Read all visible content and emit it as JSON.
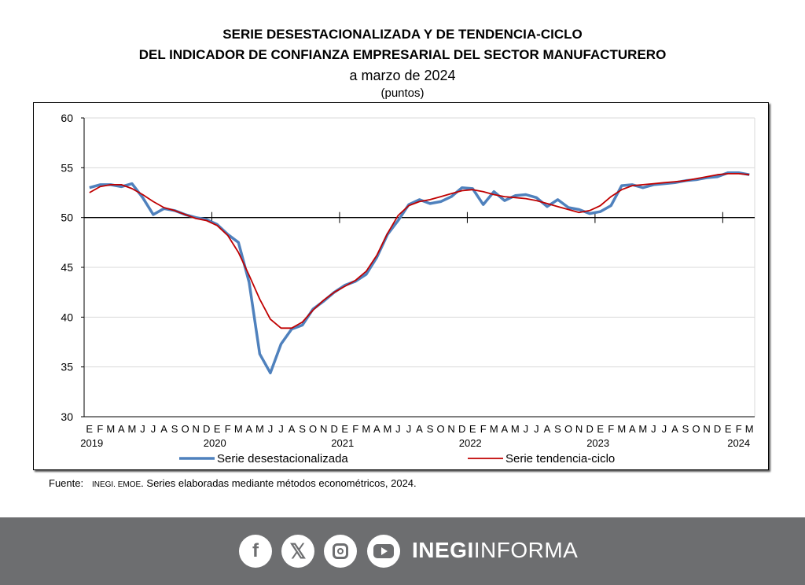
{
  "title_line1": "SERIE DESESTACIONALIZADA Y DE TENDENCIA-CICLO",
  "title_line2": "DEL INDICADOR DE CONFIANZA EMPRESARIAL DEL SECTOR MANUFACTURERO",
  "subtitle": "a marzo de 2024",
  "unit": "(puntos)",
  "source_label": "Fuente:",
  "source_org": "INEGI. EMOE",
  "source_text": ". Series elaboradas mediante métodos econométricos, 2024.",
  "footer": {
    "brand_bold": "INEGI",
    "brand_light": "INFORMA",
    "icons": [
      "facebook-icon",
      "x-icon",
      "instagram-icon",
      "youtube-icon"
    ],
    "background": "#6d6e70"
  },
  "chart_data": {
    "type": "line",
    "ylim": [
      30,
      60
    ],
    "yticks": [
      30,
      35,
      40,
      45,
      50,
      55,
      60
    ],
    "reference_line": 50,
    "grid": true,
    "legend_placement": "bottom",
    "month_labels": [
      "E",
      "F",
      "M",
      "A",
      "M",
      "J",
      "J",
      "A",
      "S",
      "O",
      "N",
      "D"
    ],
    "years": [
      "2019",
      "2020",
      "2021",
      "2022",
      "2023",
      "2024"
    ],
    "x_start": "2019-01",
    "x_end": "2024-03",
    "series": [
      {
        "name": "Serie desestacionalizada",
        "color": "#4f81bd",
        "values": [
          53.0,
          53.3,
          53.3,
          53.1,
          53.4,
          52.0,
          50.3,
          50.9,
          50.7,
          50.3,
          50.0,
          49.8,
          49.3,
          48.3,
          47.5,
          43.5,
          36.3,
          34.4,
          37.3,
          38.8,
          39.2,
          40.8,
          41.6,
          42.5,
          43.2,
          43.6,
          44.3,
          46.0,
          48.3,
          49.7,
          51.3,
          51.8,
          51.4,
          51.6,
          52.1,
          53.0,
          52.9,
          51.3,
          52.6,
          51.7,
          52.2,
          52.3,
          52.0,
          51.1,
          51.8,
          51.0,
          50.8,
          50.4,
          50.6,
          51.2,
          53.2,
          53.3,
          53.0,
          53.3,
          53.4,
          53.5,
          53.7,
          53.8,
          54.0,
          54.1,
          54.5,
          54.5,
          54.3
        ]
      },
      {
        "name": "Serie tendencia-ciclo",
        "color": "#c00000",
        "values": [
          52.5,
          53.1,
          53.3,
          53.3,
          52.9,
          52.3,
          51.6,
          51.0,
          50.7,
          50.3,
          49.9,
          49.7,
          49.2,
          48.2,
          46.5,
          44.2,
          41.8,
          39.8,
          38.9,
          38.9,
          39.5,
          40.7,
          41.7,
          42.5,
          43.1,
          43.7,
          44.6,
          46.2,
          48.4,
          50.2,
          51.2,
          51.6,
          51.8,
          52.1,
          52.4,
          52.7,
          52.8,
          52.6,
          52.3,
          52.1,
          52.0,
          51.9,
          51.7,
          51.4,
          51.1,
          50.8,
          50.5,
          50.7,
          51.2,
          52.1,
          52.8,
          53.2,
          53.3,
          53.4,
          53.5,
          53.6,
          53.7,
          53.9,
          54.1,
          54.3,
          54.4,
          54.4,
          54.3
        ]
      }
    ]
  }
}
